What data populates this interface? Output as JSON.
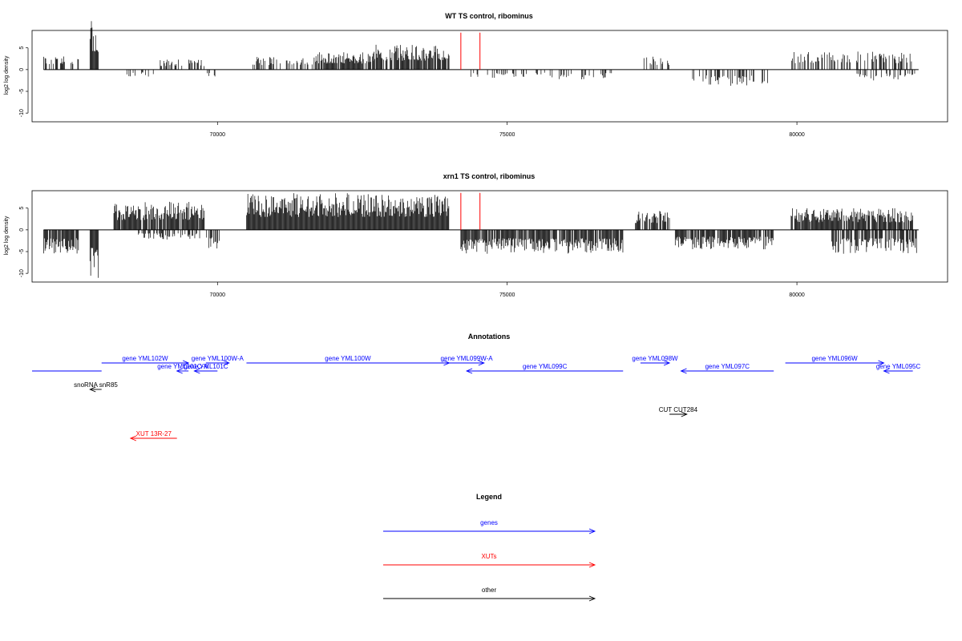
{
  "chart_data": [
    {
      "type": "bar",
      "title": "WT TS control, ribominus",
      "xlabel": "",
      "ylabel": "log2 log density",
      "xlim": [
        66800,
        82600
      ],
      "ylim": [
        -12,
        9
      ],
      "x_ticks": [
        70000,
        75000,
        80000
      ],
      "y_ticks": [
        5,
        0,
        -5,
        -10
      ],
      "markers": [
        74200,
        74530
      ],
      "marker_color": "#ff0000",
      "segments": [
        {
          "from": 67000,
          "to": 67600,
          "amp": 3.5,
          "density": 0.35
        },
        {
          "from": 67800,
          "to": 67950,
          "amp": 11.2,
          "density": 1.0
        },
        {
          "from": 68400,
          "to": 68900,
          "amp": -1.8,
          "density": 0.25
        },
        {
          "from": 69000,
          "to": 69800,
          "amp": 2.3,
          "density": 0.4
        },
        {
          "from": 69800,
          "to": 70100,
          "amp": -2.2,
          "density": 0.2
        },
        {
          "from": 70600,
          "to": 71700,
          "amp": 3.0,
          "density": 0.5
        },
        {
          "from": 71700,
          "to": 72700,
          "amp": 4.0,
          "density": 0.9
        },
        {
          "from": 72700,
          "to": 74000,
          "amp": 5.8,
          "density": 0.85
        },
        {
          "from": 74300,
          "to": 75800,
          "amp": -2.0,
          "density": 0.25
        },
        {
          "from": 75900,
          "to": 76800,
          "amp": -2.3,
          "density": 0.3
        },
        {
          "from": 77300,
          "to": 77800,
          "amp": 3.0,
          "density": 0.5
        },
        {
          "from": 78200,
          "to": 79500,
          "amp": -3.8,
          "density": 0.35
        },
        {
          "from": 79900,
          "to": 82000,
          "amp": 4.2,
          "density": 0.45
        },
        {
          "from": 81000,
          "to": 82100,
          "amp": -2.5,
          "density": 0.25
        }
      ]
    },
    {
      "type": "bar",
      "title": "xrn1 TS control, ribominus",
      "xlabel": "",
      "ylabel": "log2 log density",
      "xlim": [
        66800,
        82600
      ],
      "ylim": [
        -12,
        9
      ],
      "x_ticks": [
        70000,
        75000,
        80000
      ],
      "y_ticks": [
        5,
        0,
        -5,
        -10
      ],
      "markers": [
        74200,
        74530
      ],
      "marker_color": "#ff0000",
      "segments": [
        {
          "from": 67000,
          "to": 67600,
          "amp": -5.5,
          "density": 0.9
        },
        {
          "from": 67800,
          "to": 67950,
          "amp": -11.5,
          "density": 1.0
        },
        {
          "from": 68200,
          "to": 69800,
          "amp": 6.5,
          "density": 0.9
        },
        {
          "from": 68600,
          "to": 69700,
          "amp": -2.3,
          "density": 0.4
        },
        {
          "from": 69800,
          "to": 70050,
          "amp": -4.5,
          "density": 0.6
        },
        {
          "from": 70500,
          "to": 74000,
          "amp": 8.5,
          "density": 1.0
        },
        {
          "from": 74200,
          "to": 77000,
          "amp": -5.5,
          "density": 0.9
        },
        {
          "from": 77200,
          "to": 77800,
          "amp": 4.5,
          "density": 0.8
        },
        {
          "from": 77900,
          "to": 79600,
          "amp": -4.5,
          "density": 0.8
        },
        {
          "from": 79900,
          "to": 82000,
          "amp": 5.0,
          "density": 0.9
        },
        {
          "from": 80600,
          "to": 82100,
          "amp": -5.5,
          "density": 0.7
        }
      ]
    }
  ],
  "annotations": {
    "title": "Annotations",
    "xlim": [
      66800,
      82600
    ],
    "features": [
      {
        "label": "",
        "kind": "gene",
        "start": 68000,
        "end": 66800,
        "row": 1,
        "arrow": false
      },
      {
        "label": "snoRNA snR85",
        "kind": "other",
        "start": 68000,
        "end": 67800,
        "row": 2,
        "arrow": true
      },
      {
        "label": "gene YML102W",
        "kind": "gene",
        "start": 68000,
        "end": 69500,
        "row": 0,
        "arrow": true
      },
      {
        "label": "gene YML101C-A",
        "kind": "gene",
        "start": 69500,
        "end": 69300,
        "row": 1,
        "arrow": true
      },
      {
        "label": "gene YML101C",
        "kind": "gene",
        "start": 70000,
        "end": 69600,
        "row": 1,
        "arrow": true
      },
      {
        "label": "gene YML100W-A",
        "kind": "gene",
        "start": 69800,
        "end": 70200,
        "row": 0,
        "arrow": true
      },
      {
        "label": "gene YML100W",
        "kind": "gene",
        "start": 70500,
        "end": 74000,
        "row": 0,
        "arrow": true
      },
      {
        "label": "gene YML099W-A",
        "kind": "gene",
        "start": 74000,
        "end": 74600,
        "row": 0,
        "arrow": true
      },
      {
        "label": "gene YML099C",
        "kind": "gene",
        "start": 77000,
        "end": 74300,
        "row": 1,
        "arrow": true
      },
      {
        "label": "gene YML098W",
        "kind": "gene",
        "start": 77300,
        "end": 77800,
        "row": 0,
        "arrow": true
      },
      {
        "label": "gene YML097C",
        "kind": "gene",
        "start": 79600,
        "end": 78000,
        "row": 1,
        "arrow": true
      },
      {
        "label": "gene YML096W",
        "kind": "gene",
        "start": 79800,
        "end": 81500,
        "row": 0,
        "arrow": true
      },
      {
        "label": "gene YML095C",
        "kind": "gene",
        "start": 82000,
        "end": 81500,
        "row": 1,
        "arrow": true
      },
      {
        "label": "CUT CUT284",
        "kind": "other",
        "start": 77800,
        "end": 78100,
        "row": 3,
        "arrow": true
      },
      {
        "label": "XUT 13R-27",
        "kind": "xut",
        "start": 69300,
        "end": 68500,
        "row": 4,
        "arrow": true
      }
    ]
  },
  "legend": {
    "title": "Legend",
    "items": [
      {
        "label": "genes",
        "kind": "gene"
      },
      {
        "label": "XUTs",
        "kind": "xut"
      },
      {
        "label": "other",
        "kind": "other"
      }
    ]
  },
  "colors": {
    "gene": "#0000ff",
    "xut": "#ff0000",
    "other": "#000000",
    "axis": "#000000",
    "bars": "#000000"
  }
}
